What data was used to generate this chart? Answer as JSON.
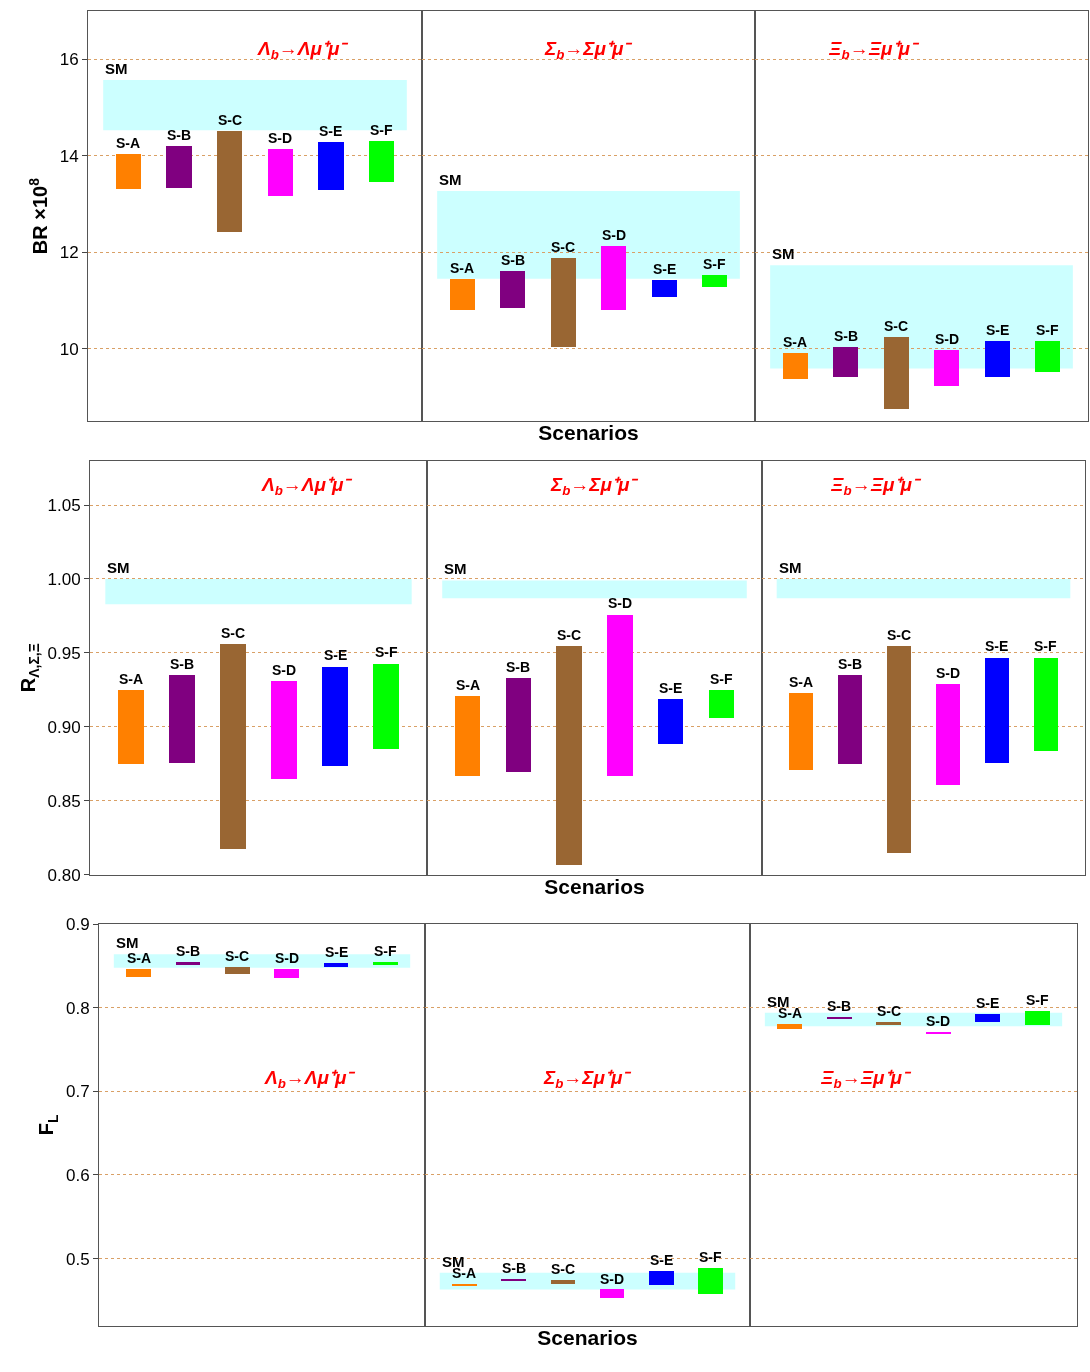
{
  "chart_data": [
    {
      "type": "bar",
      "title": "Λ$_{b}$→Λμ⁺μ⁻",
      "ylabel": "BR ×10$^{8}$",
      "tick_labels": "y",
      "grid": "y",
      "categories": [
        "S-A",
        "S-B",
        "S-C",
        "S-D",
        "S-E",
        "S-F"
      ],
      "base": [
        13.31,
        13.33,
        12.43,
        13.16,
        13.29,
        13.45
      ],
      "values": [
        0.73,
        0.87,
        2.08,
        0.98,
        1.0,
        0.86
      ],
      "colors": [
        "#ff8000",
        "#800080",
        "#996633",
        "#ff00ff",
        "#0000ff",
        "#00ff00"
      ],
      "bands": [
        {
          "axis": "y",
          "from": 14.53,
          "to": 15.57,
          "label": "SM",
          "color": "#ccffff"
        }
      ],
      "ylim": [
        8.5,
        17
      ],
      "yticks": [
        10,
        12,
        14,
        16
      ]
    },
    {
      "type": "bar",
      "title": "Σ$_{b}$→Σμ⁺μ⁻",
      "xlabel": "Scenarios",
      "tick_labels": false,
      "grid": "y",
      "categories": [
        "S-A",
        "S-B",
        "S-C",
        "S-D",
        "S-E",
        "S-F"
      ],
      "base": [
        10.8,
        10.84,
        10.04,
        10.8,
        11.08,
        11.29
      ],
      "values": [
        0.65,
        0.77,
        1.84,
        1.34,
        0.35,
        0.24
      ],
      "colors": [
        "#ff8000",
        "#800080",
        "#996633",
        "#ff00ff",
        "#0000ff",
        "#00ff00"
      ],
      "bands": [
        {
          "axis": "y",
          "from": 11.45,
          "to": 13.27,
          "label": "SM",
          "color": "#ccffff"
        }
      ],
      "ylim": [
        8.5,
        17
      ],
      "yticks": [
        10,
        12,
        14,
        16
      ]
    },
    {
      "type": "bar",
      "title": "Ξ$_{b}$→Ξμ⁺μ⁻",
      "tick_labels": false,
      "grid": "y",
      "categories": [
        "S-A",
        "S-B",
        "S-C",
        "S-D",
        "S-E",
        "S-F"
      ],
      "base": [
        9.37,
        9.41,
        8.76,
        9.24,
        9.41,
        9.51
      ],
      "values": [
        0.55,
        0.63,
        1.48,
        0.74,
        0.75,
        0.65
      ],
      "colors": [
        "#ff8000",
        "#800080",
        "#996633",
        "#ff00ff",
        "#0000ff",
        "#00ff00"
      ],
      "bands": [
        {
          "axis": "y",
          "from": 9.59,
          "to": 11.73,
          "label": "SM",
          "color": "#ccffff"
        }
      ],
      "ylim": [
        8.5,
        17
      ],
      "yticks": [
        10,
        12,
        14,
        16
      ]
    },
    {
      "type": "bar",
      "title": "Λ$_{b}$→Λμ⁺μ⁻",
      "ylabel": "R$_{Λ,Σ,Ξ}$",
      "tick_labels": "y",
      "grid": "y",
      "categories": [
        "S-A",
        "S-B",
        "S-C",
        "S-D",
        "S-E",
        "S-F"
      ],
      "base": [
        0.875,
        0.876,
        0.818,
        0.865,
        0.874,
        0.885
      ],
      "values": [
        0.05,
        0.059,
        0.138,
        0.066,
        0.067,
        0.058
      ],
      "colors": [
        "#ff8000",
        "#800080",
        "#996633",
        "#ff00ff",
        "#0000ff",
        "#00ff00"
      ],
      "bands": [
        {
          "axis": "y",
          "from": 0.983,
          "to": 1.0,
          "label": "SM",
          "color": "#ccffff"
        }
      ],
      "ylim": [
        0.8,
        1.08
      ],
      "yticks": [
        {
          "value": 0.8,
          "label": "0.80"
        },
        {
          "value": 0.85,
          "label": "0.85"
        },
        {
          "value": 0.9,
          "label": "0.90"
        },
        {
          "value": 0.95,
          "label": "0.95"
        },
        {
          "value": 1.0,
          "label": "1.00"
        },
        {
          "value": 1.05,
          "label": "1.05"
        }
      ]
    },
    {
      "type": "bar",
      "title": "Σ$_{b}$→Σμ⁺μ⁻",
      "xlabel": "Scenarios",
      "tick_labels": false,
      "grid": "y",
      "categories": [
        "S-A",
        "S-B",
        "S-C",
        "S-D",
        "S-E",
        "S-F"
      ],
      "base": [
        0.867,
        0.87,
        0.807,
        0.867,
        0.889,
        0.906
      ],
      "values": [
        0.054,
        0.063,
        0.148,
        0.109,
        0.03,
        0.019
      ],
      "colors": [
        "#ff8000",
        "#800080",
        "#996633",
        "#ff00ff",
        "#0000ff",
        "#00ff00"
      ],
      "bands": [
        {
          "axis": "y",
          "from": 0.987,
          "to": 0.999,
          "label": "SM",
          "color": "#ccffff"
        }
      ],
      "ylim": [
        0.8,
        1.08
      ],
      "yticks": [
        0.8,
        0.85,
        0.9,
        0.95,
        1.0,
        1.05
      ]
    },
    {
      "type": "bar",
      "title": "Ξ$_{b}$→Ξμ⁺μ⁻",
      "tick_labels": false,
      "grid": "y",
      "categories": [
        "S-A",
        "S-B",
        "S-C",
        "S-D",
        "S-E",
        "S-F"
      ],
      "base": [
        0.871,
        0.875,
        0.815,
        0.861,
        0.876,
        0.884
      ],
      "values": [
        0.052,
        0.06,
        0.14,
        0.068,
        0.071,
        0.063
      ],
      "colors": [
        "#ff8000",
        "#800080",
        "#996633",
        "#ff00ff",
        "#0000ff",
        "#00ff00"
      ],
      "bands": [
        {
          "axis": "y",
          "from": 0.987,
          "to": 1.0,
          "label": "SM",
          "color": "#ccffff"
        }
      ],
      "ylim": [
        0.8,
        1.08
      ],
      "yticks": [
        0.8,
        0.85,
        0.9,
        0.95,
        1.0,
        1.05
      ]
    },
    {
      "type": "bar",
      "title": "Λ$_{b}$→Λμ⁺μ⁻",
      "ylabel": "F$_{L}$",
      "tick_labels": "y",
      "grid": "y",
      "categories": [
        "S-A",
        "S-B",
        "S-C",
        "S-D",
        "S-E",
        "S-F"
      ],
      "base": [
        0.837,
        0.851,
        0.84,
        0.835,
        0.849,
        0.851
      ],
      "values": [
        0.009,
        0.004,
        0.009,
        0.011,
        0.004,
        0.004
      ],
      "colors": [
        "#ff8000",
        "#800080",
        "#996633",
        "#ff00ff",
        "#0000ff",
        "#00ff00"
      ],
      "bands": [
        {
          "axis": "y",
          "from": 0.848,
          "to": 0.864,
          "label": "SM",
          "color": "#ccffff"
        }
      ],
      "ylim": [
        0.42,
        0.9
      ],
      "yticks": [
        0.5,
        0.6,
        0.7,
        0.8,
        0.9
      ]
    },
    {
      "type": "bar",
      "title": "Σ$_{b}$→Σμ⁺μ⁻",
      "xlabel": "Scenarios",
      "tick_labels": false,
      "grid": "y",
      "categories": [
        "S-A",
        "S-B",
        "S-C",
        "S-D",
        "S-E",
        "S-F"
      ],
      "base": [
        0.468,
        0.473,
        0.47,
        0.453,
        0.468,
        0.457
      ],
      "values": [
        0.002,
        0.003,
        0.004,
        0.01,
        0.017,
        0.032
      ],
      "colors": [
        "#ff8000",
        "#800080",
        "#996633",
        "#ff00ff",
        "#0000ff",
        "#00ff00"
      ],
      "bands": [
        {
          "axis": "y",
          "from": 0.463,
          "to": 0.483,
          "label": "SM",
          "color": "#ccffff"
        }
      ],
      "ylim": [
        0.42,
        0.9
      ],
      "yticks": [
        0.5,
        0.6,
        0.7,
        0.8,
        0.9
      ]
    },
    {
      "type": "bar",
      "title": "Ξ$_{b}$→Ξμ⁺μ⁻",
      "tick_labels": false,
      "grid": "y",
      "categories": [
        "S-A",
        "S-B",
        "S-C",
        "S-D",
        "S-E",
        "S-F"
      ],
      "base": [
        0.775,
        0.786,
        0.779,
        0.769,
        0.783,
        0.779
      ],
      "values": [
        0.005,
        0.003,
        0.004,
        0.002,
        0.009,
        0.017
      ],
      "colors": [
        "#ff8000",
        "#800080",
        "#996633",
        "#ff00ff",
        "#0000ff",
        "#00ff00"
      ],
      "bands": [
        {
          "axis": "y",
          "from": 0.778,
          "to": 0.794,
          "label": "SM",
          "color": "#ccffff"
        }
      ],
      "ylim": [
        0.42,
        0.9
      ],
      "yticks": [
        0.5,
        0.6,
        0.7,
        0.8,
        0.9
      ]
    }
  ]
}
